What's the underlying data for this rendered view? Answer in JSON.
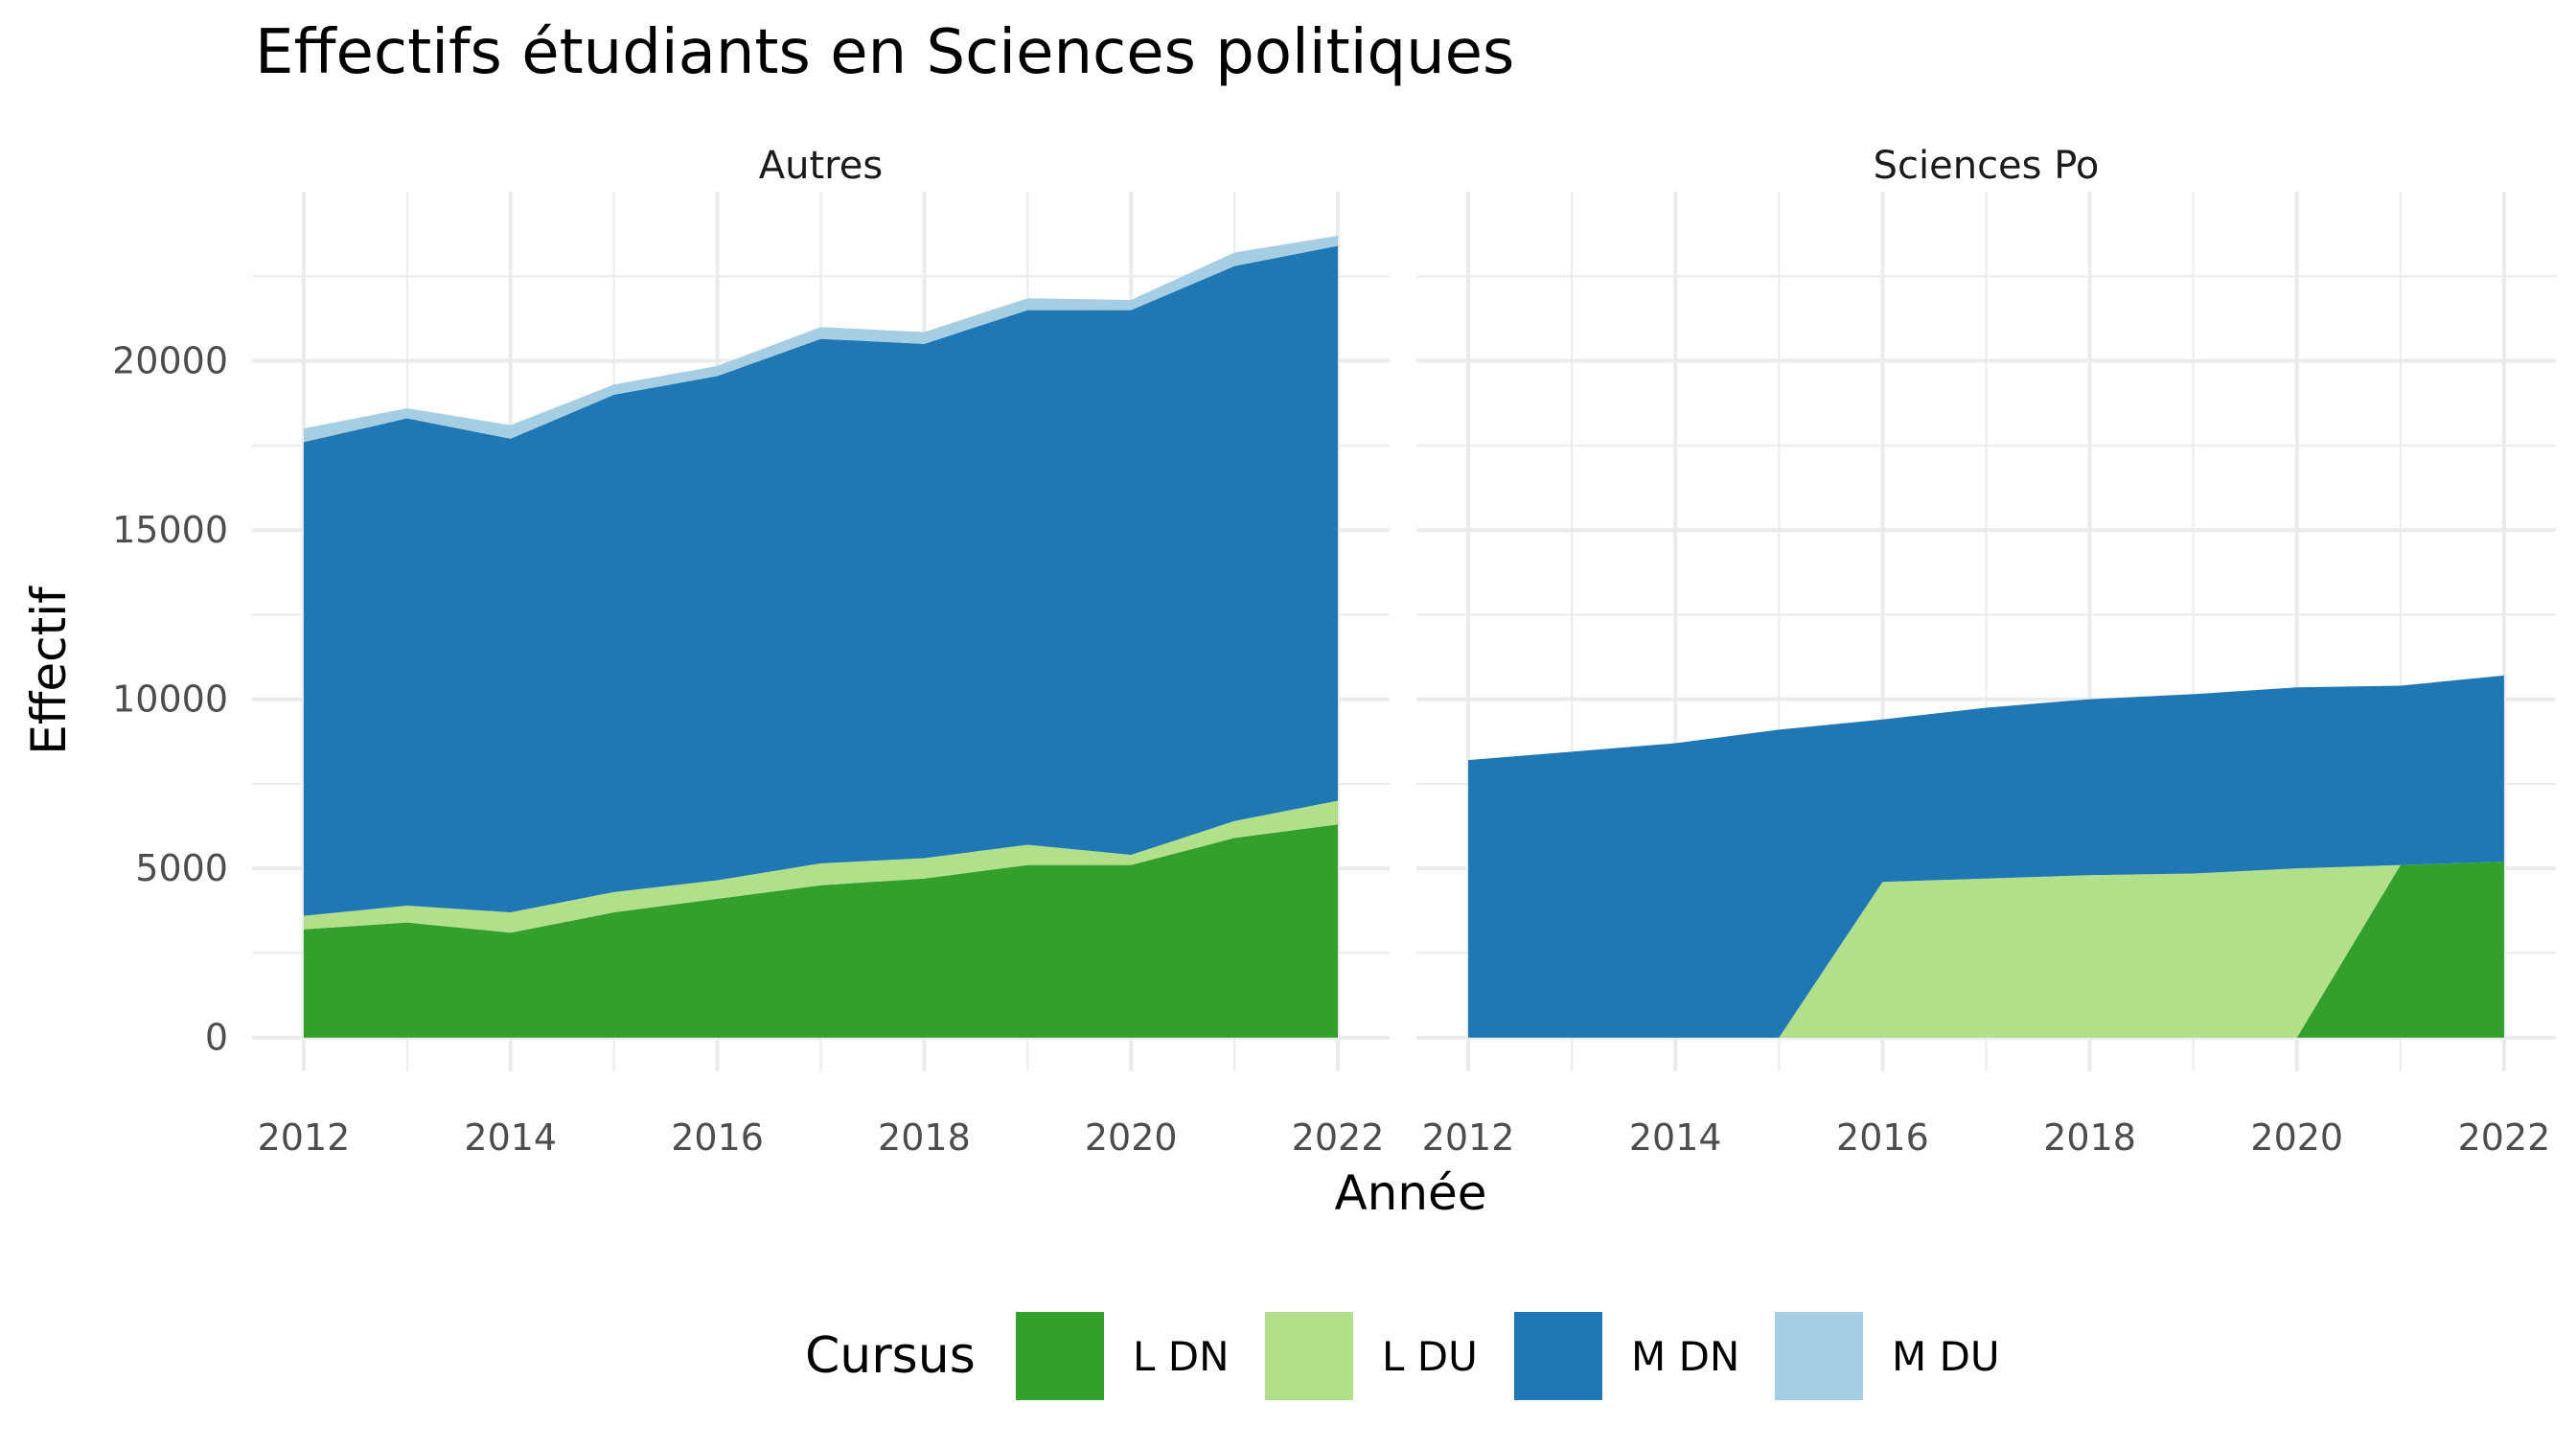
{
  "chart_data": {
    "type": "area",
    "title": "Effectifs étudiants en Sciences politiques",
    "xlabel": "Année",
    "ylabel": "Effectif",
    "xlim": [
      2011.5,
      2022.5
    ],
    "ylim": [
      -1000,
      25000
    ],
    "x_ticks": [
      "2012",
      "2014",
      "2016",
      "2018",
      "2020",
      "2022"
    ],
    "y_ticks": [
      "0",
      "5000",
      "10000",
      "15000",
      "20000"
    ],
    "grid": true,
    "legend": {
      "title": "Cursus",
      "position": "bottom",
      "items": [
        {
          "label": "L DN",
          "color": "#33a02c"
        },
        {
          "label": "L DU",
          "color": "#b2df8a"
        },
        {
          "label": "M DN",
          "color": "#1f78b4"
        },
        {
          "label": "M DU",
          "color": "#a6cee3"
        }
      ]
    },
    "stack_order": [
      "L DN",
      "L DU",
      "M DN",
      "M DU"
    ],
    "panels": [
      {
        "name": "Autres",
        "x": [
          2012,
          2013,
          2014,
          2015,
          2016,
          2017,
          2018,
          2019,
          2020,
          2021,
          2022
        ],
        "series": [
          {
            "name": "L DN",
            "values": [
              3200,
              3400,
              3100,
              3700,
              4100,
              4500,
              4700,
              5100,
              5100,
              5900,
              6300
            ]
          },
          {
            "name": "L DU",
            "values": [
              400,
              500,
              600,
              600,
              550,
              650,
              600,
              600,
              300,
              500,
              700
            ]
          },
          {
            "name": "M DN",
            "values": [
              14000,
              14400,
              14000,
              14700,
              14900,
              15500,
              15200,
              15800,
              16100,
              16400,
              16400
            ]
          },
          {
            "name": "M DU",
            "values": [
              400,
              300,
              400,
              300,
              300,
              350,
              350,
              350,
              300,
              400,
              300
            ]
          }
        ]
      },
      {
        "name": "Sciences Po",
        "x": [
          2012,
          2013,
          2014,
          2015,
          2016,
          2017,
          2018,
          2019,
          2020,
          2021,
          2022
        ],
        "series": [
          {
            "name": "L DN",
            "values": [
              0,
              0,
              0,
              0,
              0,
              0,
              0,
              0,
              0,
              5100,
              5200
            ]
          },
          {
            "name": "L DU",
            "values": [
              0,
              0,
              0,
              0,
              4600,
              4700,
              4800,
              4850,
              5000,
              0,
              0
            ]
          },
          {
            "name": "M DN",
            "values": [
              8200,
              8450,
              8700,
              9100,
              4800,
              5050,
              5200,
              5300,
              5350,
              5300,
              5500
            ]
          },
          {
            "name": "M DU",
            "values": [
              0,
              0,
              0,
              0,
              0,
              0,
              0,
              0,
              0,
              0,
              0
            ]
          }
        ]
      }
    ]
  }
}
